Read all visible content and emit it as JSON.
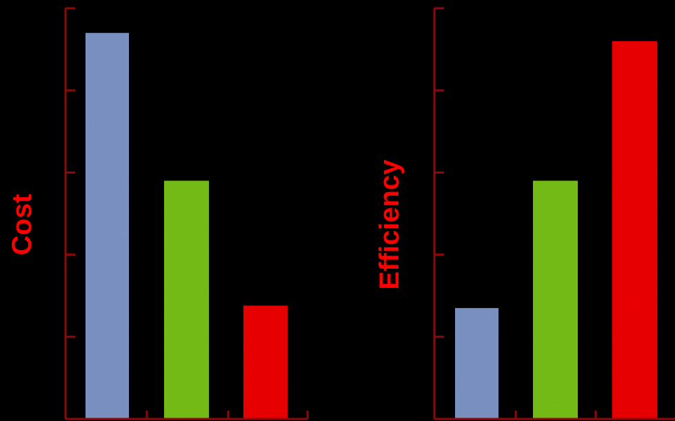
{
  "chart_data": [
    {
      "type": "bar",
      "ylabel": "Cost",
      "xlabel": "",
      "categories": [
        "",
        "",
        ""
      ],
      "values": [
        4.7,
        2.9,
        1.38
      ],
      "ylim": [
        0,
        5
      ],
      "colors": [
        "#7f96c8",
        "#79c21c",
        "#f00000"
      ],
      "axis_color": "#8b0a0a",
      "label_color": "#ff0000",
      "grid": false
    },
    {
      "type": "bar",
      "ylabel": "Efficiency",
      "xlabel": "",
      "categories": [
        "",
        "",
        ""
      ],
      "values": [
        1.35,
        2.9,
        4.6
      ],
      "ylim": [
        0,
        5
      ],
      "colors": [
        "#7f96c8",
        "#79c21c",
        "#f00000"
      ],
      "axis_color": "#8b0a0a",
      "label_color": "#ff0000",
      "grid": false
    }
  ]
}
